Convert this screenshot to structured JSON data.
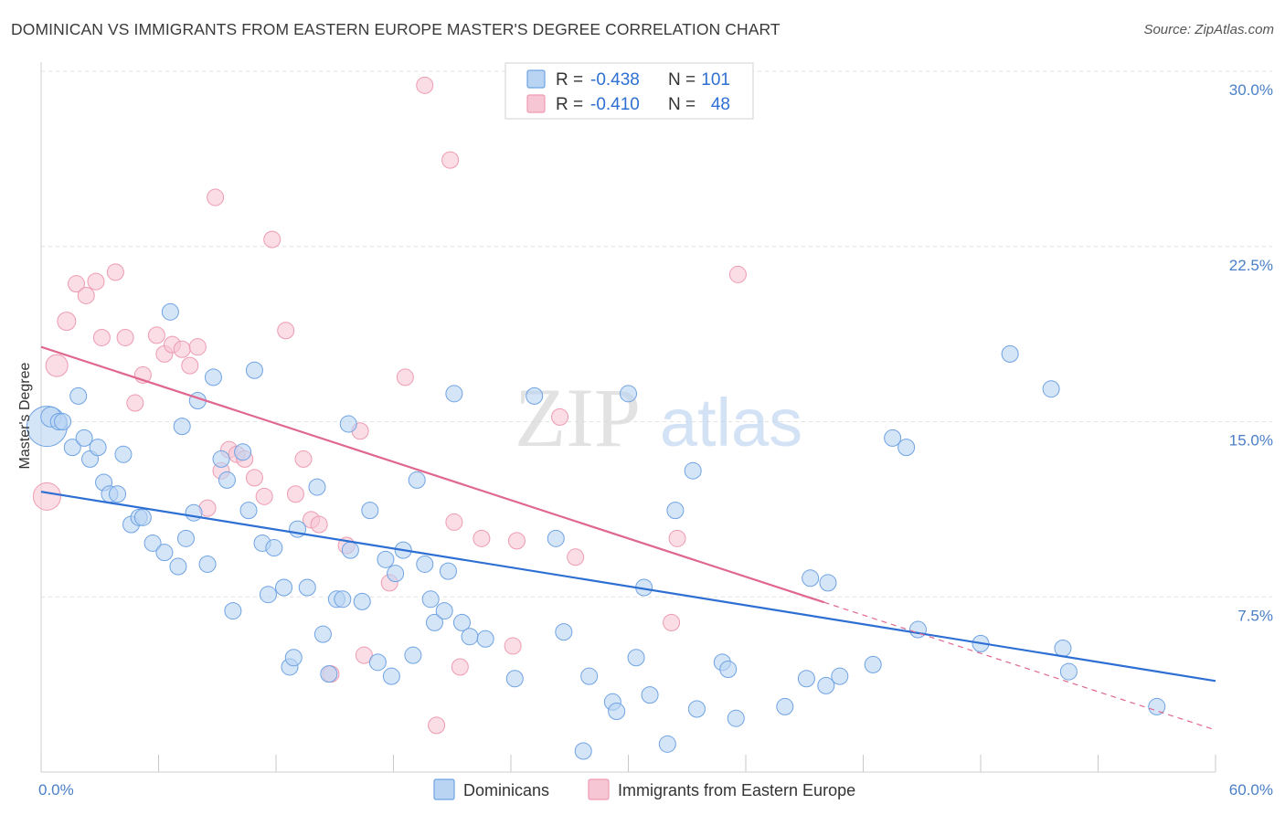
{
  "title": "DOMINICAN VS IMMIGRANTS FROM EASTERN EUROPE MASTER'S DEGREE CORRELATION CHART",
  "source": "Source: ZipAtlas.com",
  "watermark": {
    "zip": "ZIP",
    "atlas": "atlas"
  },
  "chart_data": {
    "type": "scatter",
    "xlabel": "",
    "ylabel": "Master's Degree",
    "xlim": [
      0,
      60
    ],
    "ylim": [
      0,
      30
    ],
    "x_ticks": [
      0,
      6,
      12,
      18,
      24,
      30,
      36,
      42,
      48,
      54,
      60
    ],
    "x_tick_labels": {
      "first": "0.0%",
      "last": "60.0%"
    },
    "y_ticks": [
      {
        "value": 7.5,
        "label": "7.5%"
      },
      {
        "value": 15.0,
        "label": "15.0%"
      },
      {
        "value": 22.5,
        "label": "22.5%"
      },
      {
        "value": 30.0,
        "label": "30.0%"
      }
    ],
    "grid": true,
    "legend": {
      "position": "top-center",
      "entries": [
        {
          "r_label": "R =",
          "r_value": "-0.438",
          "n_label": "N =",
          "n_value": "101"
        },
        {
          "r_label": "R =",
          "r_value": "-0.410",
          "n_label": "N =",
          "n_value": "48"
        }
      ]
    },
    "series": [
      {
        "name": "Dominicans",
        "color": "#6fa3e3",
        "fill": "#b9d3f3",
        "line_color": "#2d6fd2",
        "trend": {
          "x0": 0,
          "y0": 12.0,
          "x1": 60,
          "y1": 3.9,
          "dash_from": null
        },
        "points": [
          [
            0.3,
            14.8,
            22
          ],
          [
            0.5,
            15.2,
            11
          ],
          [
            0.9,
            15.0,
            9
          ],
          [
            1.1,
            15.0,
            9
          ],
          [
            1.6,
            13.9,
            9
          ],
          [
            1.9,
            16.1,
            9
          ],
          [
            2.2,
            14.3,
            9
          ],
          [
            2.5,
            13.4,
            9
          ],
          [
            2.9,
            13.9,
            9
          ],
          [
            3.2,
            12.4,
            9
          ],
          [
            3.5,
            11.9,
            9
          ],
          [
            3.9,
            11.9,
            9
          ],
          [
            4.2,
            13.6,
            9
          ],
          [
            4.6,
            10.6,
            9
          ],
          [
            5.0,
            10.9,
            9
          ],
          [
            5.2,
            10.9,
            9
          ],
          [
            5.7,
            9.8,
            9
          ],
          [
            6.3,
            9.4,
            9
          ],
          [
            6.6,
            19.7,
            9
          ],
          [
            7.2,
            14.8,
            9
          ],
          [
            7.0,
            8.8,
            9
          ],
          [
            7.4,
            10.0,
            9
          ],
          [
            7.8,
            11.1,
            9
          ],
          [
            8.0,
            15.9,
            9
          ],
          [
            8.5,
            8.9,
            9
          ],
          [
            8.8,
            16.9,
            9
          ],
          [
            9.2,
            13.4,
            9
          ],
          [
            9.5,
            12.5,
            9
          ],
          [
            9.8,
            6.9,
            9
          ],
          [
            10.3,
            13.7,
            9
          ],
          [
            10.6,
            11.2,
            9
          ],
          [
            10.9,
            17.2,
            9
          ],
          [
            11.3,
            9.8,
            9
          ],
          [
            11.6,
            7.6,
            9
          ],
          [
            11.9,
            9.6,
            9
          ],
          [
            12.4,
            7.9,
            9
          ],
          [
            12.7,
            4.5,
            9
          ],
          [
            12.9,
            4.9,
            9
          ],
          [
            13.1,
            10.4,
            9
          ],
          [
            13.6,
            7.9,
            9
          ],
          [
            14.1,
            12.2,
            9
          ],
          [
            14.4,
            5.9,
            9
          ],
          [
            14.7,
            4.2,
            9
          ],
          [
            15.1,
            7.4,
            9
          ],
          [
            15.4,
            7.4,
            9
          ],
          [
            15.7,
            14.9,
            9
          ],
          [
            15.8,
            9.5,
            9
          ],
          [
            16.4,
            7.3,
            9
          ],
          [
            16.8,
            11.2,
            9
          ],
          [
            17.2,
            4.7,
            9
          ],
          [
            17.6,
            9.1,
            9
          ],
          [
            17.9,
            4.1,
            9
          ],
          [
            18.1,
            8.5,
            9
          ],
          [
            18.5,
            9.5,
            9
          ],
          [
            19.0,
            5.0,
            9
          ],
          [
            19.2,
            12.5,
            9
          ],
          [
            19.6,
            8.9,
            9
          ],
          [
            19.9,
            7.4,
            9
          ],
          [
            20.1,
            6.4,
            9
          ],
          [
            20.6,
            6.9,
            9
          ],
          [
            20.8,
            8.6,
            9
          ],
          [
            21.1,
            16.2,
            9
          ],
          [
            21.5,
            6.4,
            9
          ],
          [
            21.9,
            5.8,
            9
          ],
          [
            22.7,
            5.7,
            9
          ],
          [
            24.2,
            4.0,
            9
          ],
          [
            25.2,
            16.1,
            9
          ],
          [
            26.3,
            10.0,
            9
          ],
          [
            26.7,
            6.0,
            9
          ],
          [
            27.7,
            0.9,
            9
          ],
          [
            28.0,
            4.1,
            9
          ],
          [
            29.2,
            3.0,
            9
          ],
          [
            29.4,
            2.6,
            9
          ],
          [
            30.0,
            16.2,
            9
          ],
          [
            30.4,
            4.9,
            9
          ],
          [
            30.8,
            7.9,
            9
          ],
          [
            31.1,
            3.3,
            9
          ],
          [
            32.0,
            1.2,
            9
          ],
          [
            32.4,
            11.2,
            9
          ],
          [
            33.3,
            12.9,
            9
          ],
          [
            33.5,
            2.7,
            9
          ],
          [
            34.8,
            4.7,
            9
          ],
          [
            35.1,
            4.4,
            9
          ],
          [
            35.5,
            2.3,
            9
          ],
          [
            38.0,
            2.8,
            9
          ],
          [
            39.1,
            4.0,
            9
          ],
          [
            39.3,
            8.3,
            9
          ],
          [
            40.1,
            3.7,
            9
          ],
          [
            40.2,
            8.1,
            9
          ],
          [
            40.8,
            4.1,
            9
          ],
          [
            42.5,
            4.6,
            9
          ],
          [
            43.5,
            14.3,
            9
          ],
          [
            44.2,
            13.9,
            9
          ],
          [
            44.8,
            6.1,
            9
          ],
          [
            48.0,
            5.5,
            9
          ],
          [
            49.5,
            17.9,
            9
          ],
          [
            51.6,
            16.4,
            9
          ],
          [
            52.2,
            5.3,
            9
          ],
          [
            52.5,
            4.3,
            9
          ],
          [
            57.0,
            2.8,
            9
          ]
        ]
      },
      {
        "name": "Immigrants from Eastern Europe",
        "color": "#ee9bb2",
        "fill": "#f7c6d4",
        "line_color": "#e0678f",
        "trend": {
          "x0": 0,
          "y0": 18.2,
          "x1": 60,
          "y1": 1.8,
          "dash_from": 40.0
        },
        "points": [
          [
            0.3,
            11.8,
            15
          ],
          [
            0.8,
            17.4,
            12
          ],
          [
            1.3,
            19.3,
            10
          ],
          [
            1.8,
            20.9,
            9
          ],
          [
            2.3,
            20.4,
            9
          ],
          [
            2.8,
            21.0,
            9
          ],
          [
            3.1,
            18.6,
            9
          ],
          [
            3.8,
            21.4,
            9
          ],
          [
            4.3,
            18.6,
            9
          ],
          [
            4.8,
            15.8,
            9
          ],
          [
            5.2,
            17.0,
            9
          ],
          [
            5.9,
            18.7,
            9
          ],
          [
            6.3,
            17.9,
            9
          ],
          [
            6.7,
            18.3,
            9
          ],
          [
            7.2,
            18.1,
            9
          ],
          [
            7.6,
            17.4,
            9
          ],
          [
            8.0,
            18.2,
            9
          ],
          [
            8.5,
            11.3,
            9
          ],
          [
            8.9,
            24.6,
            9
          ],
          [
            9.2,
            12.9,
            9
          ],
          [
            9.6,
            13.8,
            9
          ],
          [
            10.0,
            13.6,
            9
          ],
          [
            10.4,
            13.4,
            9
          ],
          [
            10.9,
            12.6,
            9
          ],
          [
            11.4,
            11.8,
            9
          ],
          [
            11.8,
            22.8,
            9
          ],
          [
            12.5,
            18.9,
            9
          ],
          [
            13.0,
            11.9,
            9
          ],
          [
            13.4,
            13.4,
            9
          ],
          [
            13.8,
            10.8,
            9
          ],
          [
            14.2,
            10.6,
            9
          ],
          [
            14.8,
            4.2,
            9
          ],
          [
            15.6,
            9.7,
            9
          ],
          [
            16.3,
            14.6,
            9
          ],
          [
            16.5,
            5.0,
            9
          ],
          [
            17.8,
            8.1,
            9
          ],
          [
            18.6,
            16.9,
            9
          ],
          [
            19.6,
            29.4,
            9
          ],
          [
            20.2,
            2.0,
            9
          ],
          [
            20.9,
            26.2,
            9
          ],
          [
            21.1,
            10.7,
            9
          ],
          [
            21.4,
            4.5,
            9
          ],
          [
            22.5,
            10.0,
            9
          ],
          [
            24.1,
            5.4,
            9
          ],
          [
            24.3,
            9.9,
            9
          ],
          [
            26.5,
            15.2,
            9
          ],
          [
            27.3,
            9.2,
            9
          ],
          [
            32.2,
            6.4,
            9
          ],
          [
            32.5,
            10.0,
            9
          ],
          [
            35.6,
            21.3,
            9
          ]
        ]
      }
    ]
  }
}
